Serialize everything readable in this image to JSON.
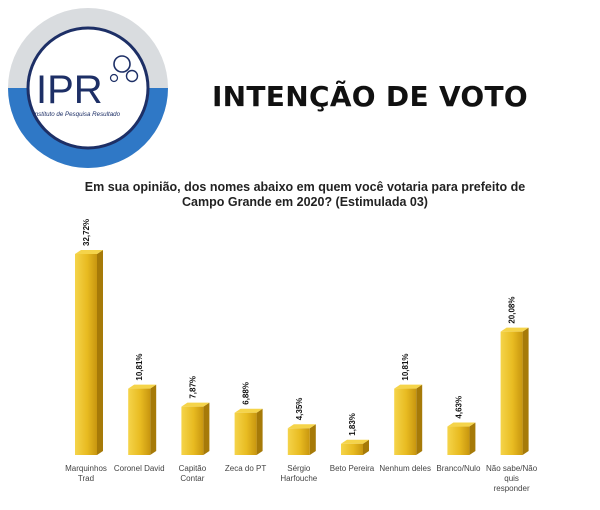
{
  "header": {
    "logo_text": "IPR",
    "logo_subtitle": "Instituto de Pesquisa Resultado",
    "title": "INTENÇÃO DE VOTO"
  },
  "colors": {
    "bar_light": "#f5d44a",
    "bar_mid": "#e3b119",
    "bar_dark": "#a67a08",
    "logo_blue": "#2f78c6",
    "logo_navy": "#1d2f66",
    "logo_gray": "#d9dcdf"
  },
  "chart_data": {
    "type": "bar",
    "title": "Em sua opinião, dos nomes abaixo em quem você votaria para prefeito de Campo Grande em 2020? (Estimulada 03)",
    "categories": [
      [
        "Marquinhos",
        "Trad"
      ],
      [
        "Coronel David"
      ],
      [
        "Capitão",
        "Contar"
      ],
      [
        "Zeca do PT"
      ],
      [
        "Sérgio",
        "Harfouche"
      ],
      [
        "Beto Pereira"
      ],
      [
        "Nenhum deles"
      ],
      [
        "Branco/Nulo"
      ],
      [
        "Não sabe/Não",
        "quis",
        "responder"
      ]
    ],
    "values": [
      32.72,
      10.81,
      7.87,
      6.88,
      4.35,
      1.83,
      10.81,
      4.63,
      20.08
    ],
    "value_labels": [
      "32,72%",
      "10,81%",
      "7,87%",
      "6,88%",
      "4,35%",
      "1,83%",
      "10,81%",
      "4,63%",
      "20,08%"
    ],
    "ylim": [
      0,
      35
    ],
    "grid": false,
    "legend": "none"
  }
}
